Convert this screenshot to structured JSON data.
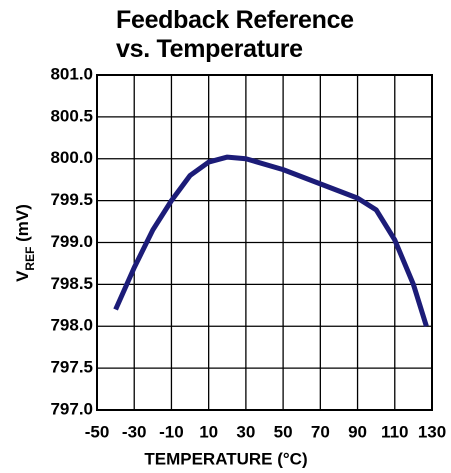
{
  "chart_data": {
    "type": "line",
    "title": "Feedback Reference vs. Temperature",
    "xlabel": "TEMPERATURE (°C)",
    "ylabel": [
      "V",
      "REF",
      " (mV)"
    ],
    "x": [
      -40,
      -30,
      -20,
      -10,
      0,
      10,
      20,
      30,
      50,
      70,
      90,
      100,
      110,
      120,
      127
    ],
    "series": [
      {
        "name": "VREF",
        "color": "#1c1c78",
        "values": [
          798.2,
          798.7,
          799.15,
          799.5,
          799.8,
          799.96,
          800.02,
          800.0,
          799.87,
          799.7,
          799.53,
          799.39,
          799.03,
          798.5,
          798.0
        ]
      }
    ],
    "xlim": [
      -50,
      130
    ],
    "xticks": [
      -50,
      -30,
      -10,
      10,
      30,
      50,
      70,
      90,
      110,
      130
    ],
    "ylim": [
      797,
      801
    ],
    "yticks": [
      {
        "value": 797,
        "label": "797.0"
      },
      {
        "value": 797.5,
        "label": "797.5"
      },
      {
        "value": 798,
        "label": "798.0"
      },
      {
        "value": 798.5,
        "label": "798.5"
      },
      {
        "value": 799,
        "label": "799.0"
      },
      {
        "value": 799.5,
        "label": "799.5"
      },
      {
        "value": 800,
        "label": "800.0"
      },
      {
        "value": 800.5,
        "label": "800.5"
      },
      {
        "value": 801,
        "label": "801.0"
      }
    ],
    "grid": true
  }
}
